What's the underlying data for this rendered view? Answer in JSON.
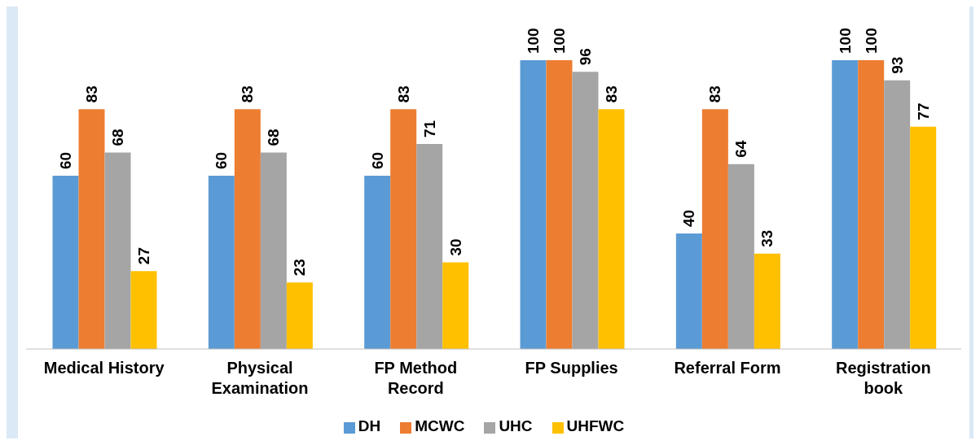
{
  "chart_data": {
    "type": "bar",
    "categories": [
      "Medical History",
      "Physical Examination",
      "FP Method Record",
      "FP Supplies",
      "Referral Form",
      "Registration book"
    ],
    "series": [
      {
        "name": "DH",
        "color": "#5b9bd5",
        "values": [
          60,
          60,
          60,
          100,
          40,
          100
        ]
      },
      {
        "name": "MCWC",
        "color": "#ed7d31",
        "values": [
          83,
          83,
          83,
          100,
          83,
          100
        ]
      },
      {
        "name": "UHC",
        "color": "#a5a5a5",
        "values": [
          68,
          68,
          71,
          96,
          64,
          93
        ]
      },
      {
        "name": "UHFWC",
        "color": "#ffc000",
        "values": [
          27,
          23,
          30,
          83,
          33,
          77
        ]
      }
    ],
    "data_labels": true,
    "grid": false,
    "legend": "bottom",
    "tick_labels": "x"
  }
}
